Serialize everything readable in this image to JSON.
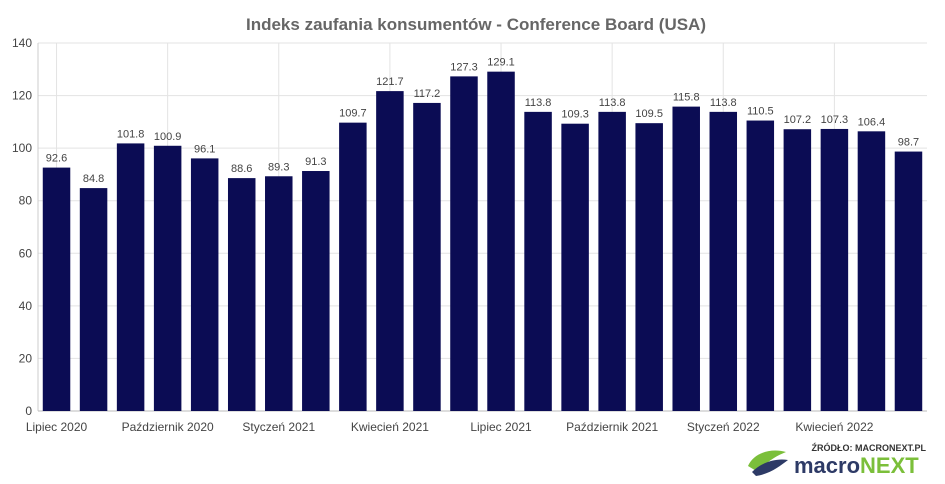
{
  "chart_data": {
    "type": "bar",
    "title": "Indeks zaufania konsumentów - Conference Board (USA)",
    "xlabel": "",
    "ylabel": "",
    "ylim": [
      0,
      140
    ],
    "yticks": [
      "0",
      "20",
      "40",
      "60",
      "80",
      "100",
      "120",
      "140"
    ],
    "grid": true,
    "bar_color": "#0b0c54",
    "categories": [
      "Lipiec 2020",
      "",
      "",
      "Październik 2020",
      "",
      "",
      "Styczeń 2021",
      "",
      "",
      "Kwiecień 2021",
      "",
      "",
      "Lipiec 2021",
      "",
      "",
      "Październik 2021",
      "",
      "",
      "Styczeń 2022",
      "",
      "",
      "Kwiecień 2022",
      "",
      ""
    ],
    "values": [
      92.6,
      84.8,
      101.8,
      100.9,
      96.1,
      88.6,
      89.3,
      91.3,
      109.7,
      121.7,
      117.2,
      127.3,
      129.1,
      113.8,
      109.3,
      113.8,
      109.5,
      115.8,
      113.8,
      110.5,
      107.2,
      107.3,
      106.4,
      98.7
    ],
    "labels": [
      "92.6",
      "84.8",
      "101.8",
      "100.9",
      "96.1",
      "88.6",
      "89.3",
      "91.3",
      "109.7",
      "121.7",
      "117.2",
      "127.3",
      "129.1",
      "113.8",
      "109.3",
      "113.8",
      "109.5",
      "115.8",
      "113.8",
      "110.5",
      "107.2",
      "107.3",
      "106.4",
      "98.7"
    ],
    "xtick_labels": [
      {
        "index": 0,
        "text": "Lipiec 2020"
      },
      {
        "index": 3,
        "text": "Październik 2020"
      },
      {
        "index": 6,
        "text": "Styczeń 2021"
      },
      {
        "index": 9,
        "text": "Kwiecień 2021"
      },
      {
        "index": 12,
        "text": "Lipiec 2021"
      },
      {
        "index": 15,
        "text": "Październik 2021"
      },
      {
        "index": 18,
        "text": "Styczeń 2022"
      },
      {
        "index": 21,
        "text": "Kwiecień 2022"
      }
    ]
  },
  "branding": {
    "source": "ŹRÓDŁO: MACRONEXT.PL",
    "logo_part1": "macro",
    "logo_part2": "NEXT",
    "logo_icon": "leaf-logo-icon"
  }
}
